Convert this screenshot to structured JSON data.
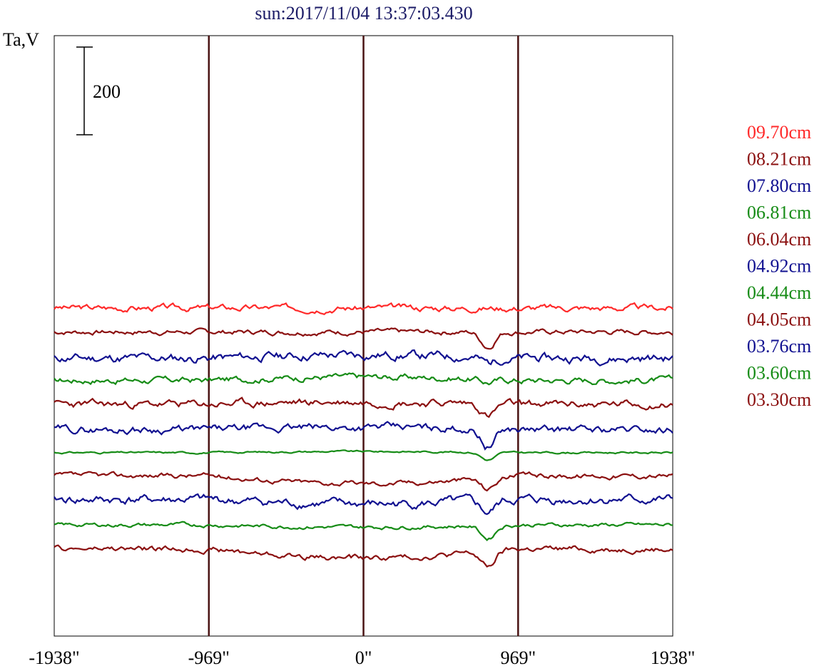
{
  "chart_data": {
    "type": "line",
    "title": "sun:2017/11/04 13:37:03.430",
    "ylabel": "Ta,V",
    "xlabel": "",
    "x_tick_labels": [
      "-1938\"",
      "-969\"",
      "0\"",
      "969\"",
      "1938\""
    ],
    "x_ticks": [
      -1938,
      -969,
      0,
      969,
      1938
    ],
    "xlim": [
      -1938,
      1938
    ],
    "vertical_lines_at": [
      -969,
      0,
      969
    ],
    "scale_bar": {
      "label": "200",
      "value": 200
    },
    "grid": false,
    "legend_placement": "right",
    "series": [
      {
        "name": "09.70cm",
        "color": "#ff2a2a",
        "offset": 1100,
        "baseline": 0,
        "dip": 0,
        "noise": 10,
        "seed": 3
      },
      {
        "name": "08.21cm",
        "color": "#8b1010",
        "offset": 990,
        "baseline": 0,
        "dip": 70,
        "noise": 8,
        "seed": 7
      },
      {
        "name": "07.80cm",
        "color": "#101090",
        "offset": 870,
        "baseline": 15,
        "dip": 25,
        "noise": 14,
        "seed": 11
      },
      {
        "name": "06.81cm",
        "color": "#178c17",
        "offset": 770,
        "baseline": 15,
        "dip": 15,
        "noise": 10,
        "seed": 17
      },
      {
        "name": "06.04cm",
        "color": "#8b1010",
        "offset": 660,
        "baseline": 10,
        "dip": 55,
        "noise": 12,
        "seed": 23
      },
      {
        "name": "04.92cm",
        "color": "#101090",
        "offset": 545,
        "baseline": 10,
        "dip": 80,
        "noise": 12,
        "seed": 29
      },
      {
        "name": "04.44cm",
        "color": "#178c17",
        "offset": 440,
        "baseline": 5,
        "dip": 35,
        "noise": 3,
        "seed": 31
      },
      {
        "name": "04.05cm",
        "color": "#8b1010",
        "offset": 335,
        "baseline": -35,
        "dip": 50,
        "noise": 8,
        "seed": 37
      },
      {
        "name": "03.76cm",
        "color": "#101090",
        "offset": 225,
        "baseline": -20,
        "dip": 55,
        "noise": 14,
        "seed": 41
      },
      {
        "name": "03.60cm",
        "color": "#178c17",
        "offset": 110,
        "baseline": -10,
        "dip": 60,
        "noise": 6,
        "seed": 43
      },
      {
        "name": "03.30cm",
        "color": "#8b1010",
        "offset": 0,
        "baseline": -40,
        "dip": 70,
        "noise": 9,
        "seed": 47
      }
    ],
    "legend": [
      {
        "label": "09.70cm",
        "color": "#ff2a2a"
      },
      {
        "label": "08.21cm",
        "color": "#8b1010"
      },
      {
        "label": "07.80cm",
        "color": "#101090"
      },
      {
        "label": "06.81cm",
        "color": "#178c17"
      },
      {
        "label": "06.04cm",
        "color": "#8b1010"
      },
      {
        "label": "04.92cm",
        "color": "#101090"
      },
      {
        "label": "04.44cm",
        "color": "#178c17"
      },
      {
        "label": "04.05cm",
        "color": "#8b1010"
      },
      {
        "label": "03.76cm",
        "color": "#101090"
      },
      {
        "label": "03.60cm",
        "color": "#178c17"
      },
      {
        "label": "03.30cm",
        "color": "#8b1010"
      }
    ]
  }
}
